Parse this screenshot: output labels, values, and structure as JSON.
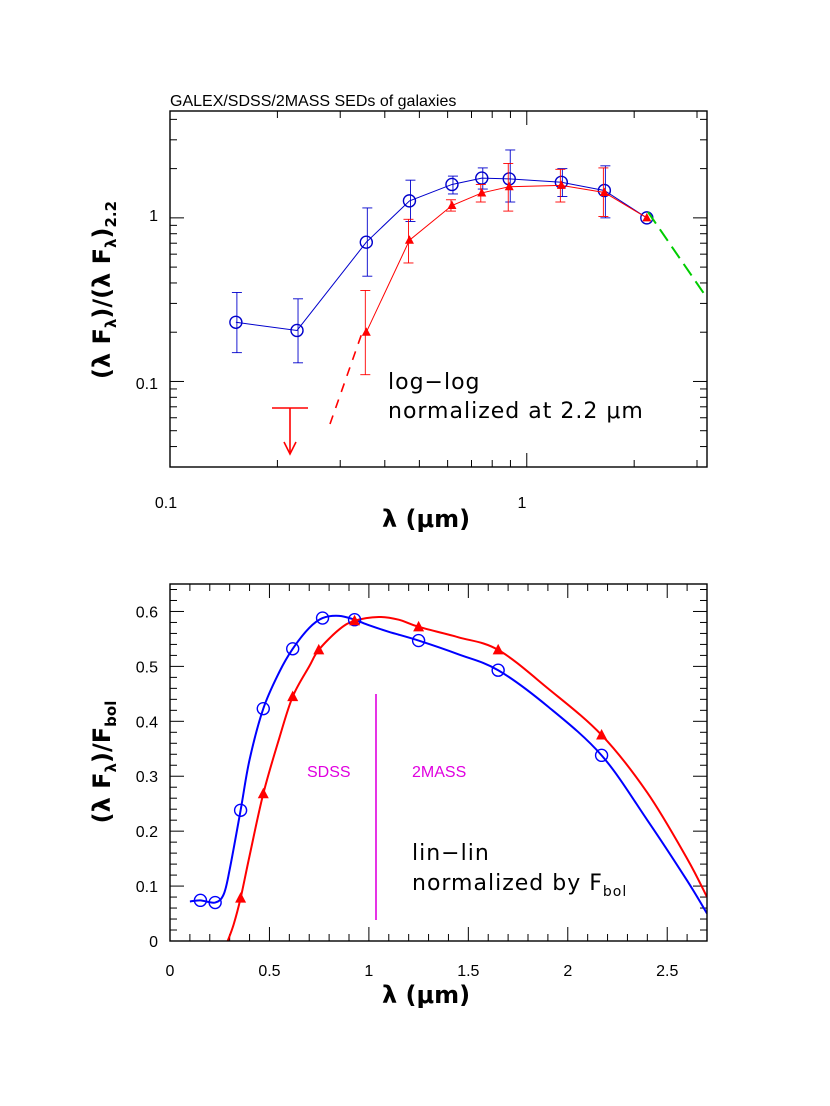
{
  "chart_data": [
    {
      "type": "line",
      "title": "GALEX/SDSS/2MASS SEDs of galaxies",
      "xlabel": "λ  (μm)",
      "ylabel": "(λ F_λ)/(λ F_λ)_2.2",
      "x_scale": "log",
      "y_scale": "log",
      "xlim": [
        0.1,
        3.2
      ],
      "ylim": [
        0.03,
        4.5
      ],
      "x_tick_labels": [
        "0.1",
        "1"
      ],
      "y_tick_labels": [
        "0.1",
        "1"
      ],
      "annotation": [
        "log−log",
        "normalized at 2.2 μm"
      ],
      "series": [
        {
          "color": "#0000cc",
          "marker": "circle",
          "x": [
            0.153,
            0.227,
            0.355,
            0.469,
            0.617,
            0.748,
            0.893,
            1.25,
            1.65,
            2.17
          ],
          "y": [
            0.23,
            0.205,
            0.71,
            1.27,
            1.6,
            1.75,
            1.73,
            1.65,
            1.47,
            1.0
          ],
          "err_low": [
            0.15,
            0.13,
            0.44,
            0.95,
            1.4,
            1.5,
            1.25,
            1.35,
            1.0,
            1.0
          ],
          "err_high": [
            0.35,
            0.32,
            1.15,
            1.7,
            1.8,
            2.02,
            2.6,
            2.0,
            2.08,
            1.0
          ]
        },
        {
          "color": "#ff0000",
          "marker": "triangle",
          "x": [
            0.355,
            0.469,
            0.617,
            0.748,
            0.893,
            1.25,
            1.65,
            2.17
          ],
          "y": [
            0.2,
            0.73,
            1.19,
            1.42,
            1.55,
            1.58,
            1.43,
            1.0
          ],
          "err_low": [
            0.11,
            0.53,
            1.1,
            1.25,
            1.1,
            1.25,
            1.02,
            1.0
          ],
          "err_high": [
            0.36,
            0.98,
            1.29,
            1.6,
            2.15,
            1.98,
            2.02,
            1.0
          ]
        }
      ]
    },
    {
      "type": "line",
      "xlabel": "λ  (μm)",
      "ylabel": "(λ F_λ)/F_bol",
      "xlim": [
        0,
        2.7
      ],
      "ylim": [
        0,
        0.65
      ],
      "x_ticks": [
        0,
        0.5,
        1,
        1.5,
        2,
        2.5
      ],
      "x_tick_labels": [
        "0",
        "0.5",
        "1",
        "1.5",
        "2",
        "2.5"
      ],
      "y_ticks": [
        0,
        0.1,
        0.2,
        0.3,
        0.4,
        0.5,
        0.6
      ],
      "y_tick_labels": [
        "0",
        "0.1",
        "0.2",
        "0.3",
        "0.4",
        "0.5",
        "0.6"
      ],
      "annotation": [
        "lin−lin",
        "normalized by F_bol"
      ],
      "regions": {
        "divider_x": 1.05,
        "left_label": "SDSS",
        "right_label": "2MASS",
        "color": "#e000e0"
      },
      "series": [
        {
          "color": "#0000ff",
          "marker": "circle",
          "points_x": [
            0.153,
            0.227,
            0.355,
            0.469,
            0.617,
            0.767,
            0.928,
            1.25,
            1.65,
            2.17
          ],
          "points_y": [
            0.074,
            0.07,
            0.238,
            0.423,
            0.532,
            0.588,
            0.585,
            0.547,
            0.493,
            0.338
          ],
          "curve_x": [
            0.1,
            0.153,
            0.227,
            0.27,
            0.3,
            0.355,
            0.4,
            0.469,
            0.55,
            0.617,
            0.7,
            0.767,
            0.85,
            0.928,
            1.0,
            1.1,
            1.25,
            1.45,
            1.65,
            1.9,
            2.17,
            2.4,
            2.6,
            2.7
          ],
          "curve_y": [
            0.072,
            0.074,
            0.07,
            0.085,
            0.13,
            0.238,
            0.33,
            0.423,
            0.49,
            0.532,
            0.57,
            0.588,
            0.592,
            0.585,
            0.575,
            0.563,
            0.547,
            0.522,
            0.493,
            0.427,
            0.338,
            0.22,
            0.11,
            0.05
          ]
        },
        {
          "color": "#ff0000",
          "marker": "triangle",
          "points_x": [
            0.355,
            0.469,
            0.617,
            0.748,
            0.928,
            1.25,
            1.65,
            2.17
          ],
          "points_y": [
            0.078,
            0.268,
            0.445,
            0.53,
            0.583,
            0.572,
            0.53,
            0.375
          ],
          "curve_x": [
            0.29,
            0.32,
            0.355,
            0.4,
            0.469,
            0.55,
            0.617,
            0.7,
            0.748,
            0.85,
            0.928,
            1.05,
            1.15,
            1.25,
            1.45,
            1.65,
            1.9,
            2.17,
            2.4,
            2.6,
            2.7
          ],
          "curve_y": [
            0.0,
            0.03,
            0.078,
            0.155,
            0.268,
            0.37,
            0.445,
            0.5,
            0.53,
            0.567,
            0.583,
            0.59,
            0.585,
            0.572,
            0.553,
            0.53,
            0.46,
            0.375,
            0.27,
            0.15,
            0.08
          ]
        }
      ]
    }
  ]
}
